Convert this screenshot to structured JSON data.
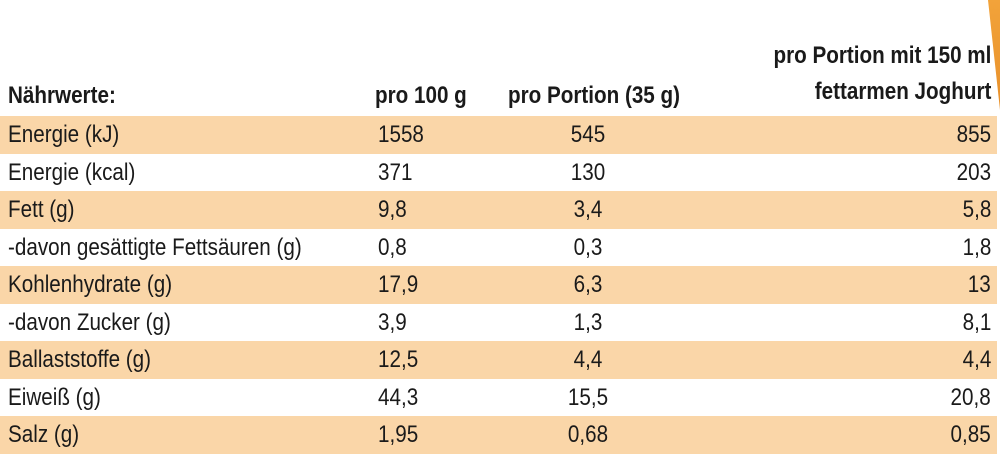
{
  "table": {
    "headers": {
      "label": "Nährwerte:",
      "per_100g": "pro 100 g",
      "per_portion": "pro Portion (35 g)",
      "per_portion_yogurt_line1": "pro Portion mit 150 ml",
      "per_portion_yogurt_line2": "fettarmen Joghurt"
    },
    "rows": [
      {
        "label": "Energie (kJ)",
        "per_100g": "1558",
        "per_portion": "545",
        "per_portion_yogurt": "855"
      },
      {
        "label": "Energie (kcal)",
        "per_100g": "371",
        "per_portion": "130",
        "per_portion_yogurt": "203"
      },
      {
        "label": "Fett (g)",
        "per_100g": "9,8",
        "per_portion": "3,4",
        "per_portion_yogurt": "5,8"
      },
      {
        "label": "-davon gesättigte Fettsäuren (g)",
        "per_100g": "0,8",
        "per_portion": "0,3",
        "per_portion_yogurt": "1,8"
      },
      {
        "label": "Kohlenhydrate (g)",
        "per_100g": "17,9",
        "per_portion": "6,3",
        "per_portion_yogurt": "13"
      },
      {
        "label": "-davon Zucker (g)",
        "per_100g": "3,9",
        "per_portion": "1,3",
        "per_portion_yogurt": "8,1"
      },
      {
        "label": "Ballaststoffe (g)",
        "per_100g": "12,5",
        "per_portion": "4,4",
        "per_portion_yogurt": "4,4"
      },
      {
        "label": "Eiweiß (g)",
        "per_100g": "44,3",
        "per_portion": "15,5",
        "per_portion_yogurt": "20,8"
      },
      {
        "label": "Salz (g)",
        "per_100g": "1,95",
        "per_portion": "0,68",
        "per_portion_yogurt": "0,85"
      }
    ]
  },
  "colors": {
    "row_shade": "#fad6a8",
    "accent": "#f2a33a"
  }
}
